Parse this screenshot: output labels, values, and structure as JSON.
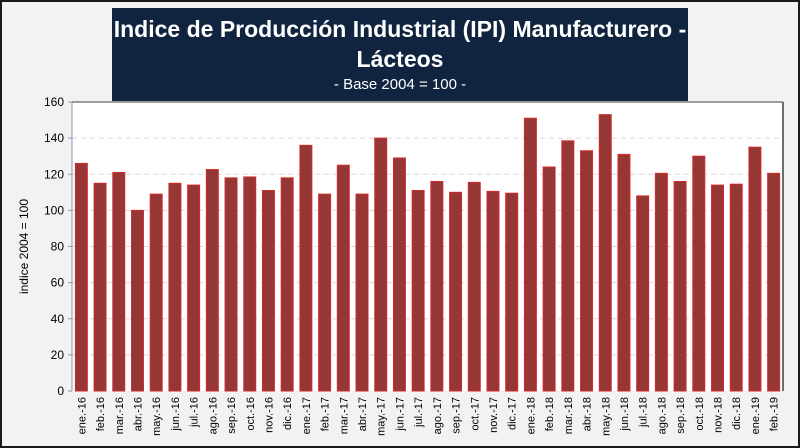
{
  "chart_data": {
    "type": "bar",
    "title": "Indice de Producción Industrial (IPI) Manufacturero -",
    "title_line2": "Lácteos",
    "subtitle": "- Base 2004 = 100 -",
    "xlabel": "",
    "ylabel": "indice 2004 = 100",
    "ylim": [
      0,
      160
    ],
    "yticks": [
      0,
      20,
      40,
      60,
      80,
      100,
      120,
      140,
      160
    ],
    "grid": true,
    "legend": "none",
    "colors": {
      "bar_fill": "#953735",
      "bar_edge": "#d42a2a",
      "title_bg": "#10243f",
      "grid": "#d9d9d9"
    },
    "categories": [
      "ene.-16",
      "feb.-16",
      "mar.-16",
      "abr.-16",
      "may.-16",
      "jun.-16",
      "jul.-16",
      "ago.-16",
      "sep.-16",
      "oct.-16",
      "nov.-16",
      "dic.-16",
      "ene.-17",
      "feb.-17",
      "mar.-17",
      "abr.-17",
      "may.-17",
      "jun.-17",
      "jul.-17",
      "ago.-17",
      "sep.-17",
      "oct.-17",
      "nov.-17",
      "dic.-17",
      "ene.-18",
      "feb.-18",
      "mar.-18",
      "abr.-18",
      "may.-18",
      "jun.-18",
      "jul.-18",
      "ago.-18",
      "sep.-18",
      "oct.-18",
      "nov.-18",
      "dic.-18",
      "ene.-19",
      "feb.-19"
    ],
    "values": [
      126,
      115,
      121,
      100,
      109,
      115,
      114,
      122.6,
      118,
      118.5,
      111,
      118,
      136,
      109,
      125,
      109,
      140,
      129,
      111,
      116,
      110,
      115.5,
      110.5,
      109.5,
      151,
      124,
      138.5,
      133,
      153,
      131,
      108,
      120.5,
      116,
      130,
      114,
      114.5,
      135,
      120.5
    ]
  }
}
